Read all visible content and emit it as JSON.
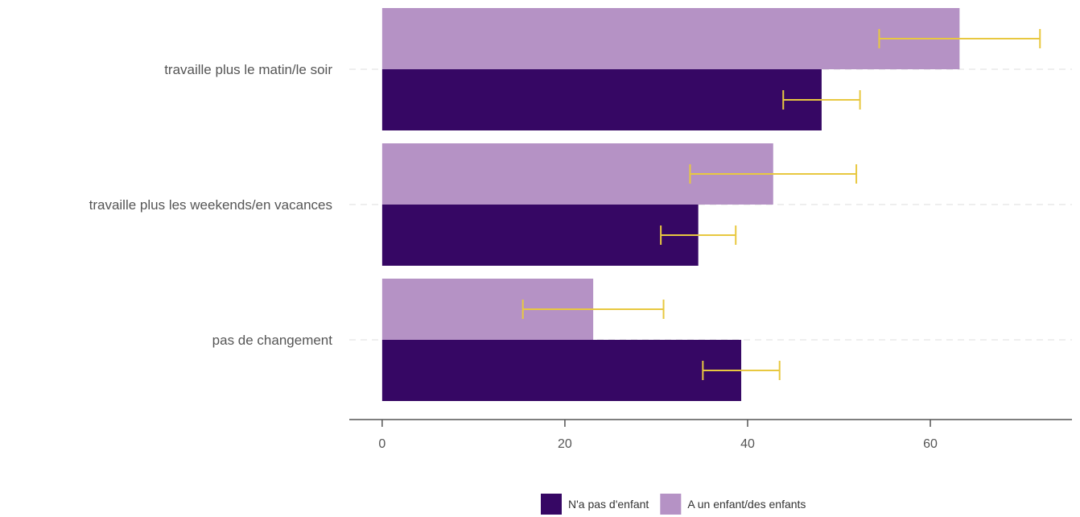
{
  "chart_data": {
    "type": "bar",
    "orientation": "horizontal",
    "categories": [
      "travaille plus le matin/le soir",
      "travaille plus les weekends/en vacances",
      "pas de changement"
    ],
    "series": [
      {
        "name": "A un enfant/des enfants",
        "values": [
          63.2,
          42.8,
          23.1
        ],
        "ci_low": [
          54.4,
          33.7,
          15.4
        ],
        "ci_high": [
          72.0,
          51.9,
          30.8
        ]
      },
      {
        "name": "N'a pas d'enfant",
        "values": [
          48.1,
          34.6,
          39.3
        ],
        "ci_low": [
          43.9,
          30.5,
          35.1
        ],
        "ci_high": [
          52.3,
          38.7,
          43.5
        ]
      }
    ],
    "legend_order": [
      "N'a pas d'enfant",
      "A un enfant/des enfants"
    ],
    "xticks": [
      0,
      20,
      40,
      60
    ],
    "xlim": [
      -3.6,
      75.5
    ],
    "grid": "dashed-horizontal",
    "legend_position": "bottom",
    "colors": {
      "A un enfant/des enfants": "#b592c5",
      "N'a pas d'enfant": "#360764",
      "error_bar": "#e8c840",
      "grid": "#e3e3e3",
      "axis": "#555555"
    }
  }
}
